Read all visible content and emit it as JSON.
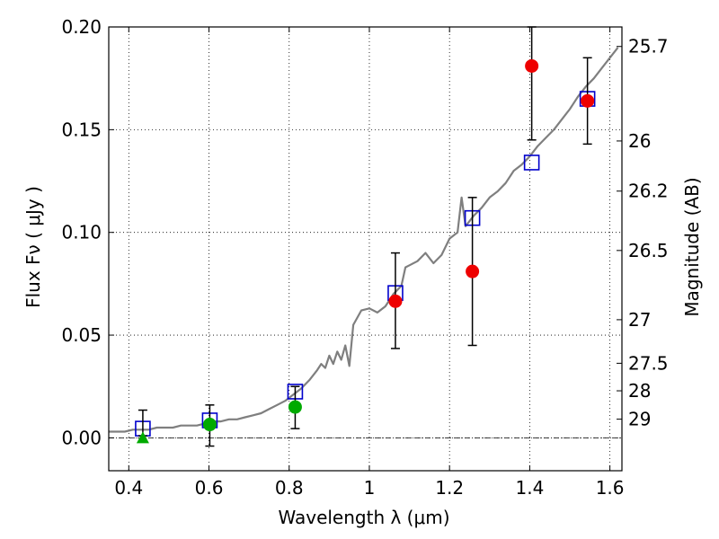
{
  "chart_data": {
    "type": "scatter",
    "xlabel": "Wavelength  λ (μm)",
    "ylabel": "Flux  Fν  ( μJy )",
    "ylabel_right": "Magnitude (AB)",
    "xlim": [
      0.35,
      1.63
    ],
    "ylim": [
      -0.016,
      0.2
    ],
    "x_ticks": [
      0.4,
      0.6,
      0.8,
      1.0,
      1.2,
      1.4,
      1.6
    ],
    "x_tick_labels": [
      "0.4",
      "0.6",
      "0.8",
      "1",
      "1.2",
      "1.4",
      "1.6"
    ],
    "y_ticks": [
      0.0,
      0.05,
      0.1,
      0.15,
      0.2
    ],
    "y_tick_labels": [
      "0.00",
      "0.05",
      "0.10",
      "0.15",
      "0.20"
    ],
    "right_ticks": [
      {
        "flux": 0.1905,
        "label": "25.7"
      },
      {
        "flux": 0.1445,
        "label": "26"
      },
      {
        "flux": 0.1201,
        "label": "26.2"
      },
      {
        "flux": 0.0912,
        "label": "26.5"
      },
      {
        "flux": 0.0575,
        "label": "27"
      },
      {
        "flux": 0.0363,
        "label": "27.5"
      },
      {
        "flux": 0.0229,
        "label": "28"
      },
      {
        "flux": 0.0091,
        "label": "29"
      }
    ],
    "grid": true,
    "colors": {
      "model": "#7f7f7f",
      "model_points": "#0000cc",
      "red_points": "#ee0000",
      "green_points": "#00aa00",
      "errorbars": "#000000"
    },
    "series": [
      {
        "marker": "line",
        "x": [
          0.35,
          0.37,
          0.39,
          0.41,
          0.43,
          0.45,
          0.47,
          0.49,
          0.51,
          0.53,
          0.55,
          0.57,
          0.59,
          0.61,
          0.63,
          0.65,
          0.67,
          0.69,
          0.71,
          0.73,
          0.75,
          0.77,
          0.79,
          0.81,
          0.83,
          0.85,
          0.87,
          0.88,
          0.89,
          0.9,
          0.91,
          0.92,
          0.93,
          0.94,
          0.95,
          0.96,
          0.98,
          1.0,
          1.02,
          1.04,
          1.06,
          1.08,
          1.09,
          1.1,
          1.12,
          1.14,
          1.16,
          1.18,
          1.2,
          1.22,
          1.23,
          1.24,
          1.26,
          1.28,
          1.3,
          1.32,
          1.34,
          1.36,
          1.38,
          1.4,
          1.42,
          1.44,
          1.46,
          1.48,
          1.5,
          1.52,
          1.54,
          1.56,
          1.58,
          1.6,
          1.62
        ],
        "y": [
          0.003,
          0.003,
          0.003,
          0.004,
          0.004,
          0.004,
          0.005,
          0.005,
          0.005,
          0.006,
          0.006,
          0.006,
          0.007,
          0.008,
          0.008,
          0.009,
          0.009,
          0.01,
          0.011,
          0.012,
          0.014,
          0.016,
          0.018,
          0.021,
          0.024,
          0.028,
          0.033,
          0.036,
          0.034,
          0.04,
          0.036,
          0.042,
          0.038,
          0.045,
          0.035,
          0.055,
          0.062,
          0.063,
          0.061,
          0.064,
          0.07,
          0.074,
          0.083,
          0.084,
          0.086,
          0.09,
          0.085,
          0.089,
          0.097,
          0.1,
          0.117,
          0.103,
          0.108,
          0.112,
          0.117,
          0.12,
          0.124,
          0.13,
          0.133,
          0.137,
          0.142,
          0.146,
          0.15,
          0.155,
          0.16,
          0.166,
          0.171,
          0.175,
          0.18,
          0.185,
          0.19
        ]
      },
      {
        "marker": "square",
        "x": [
          0.435,
          0.602,
          0.815,
          1.065,
          1.257,
          1.405,
          1.544
        ],
        "y": [
          0.0045,
          0.0085,
          0.0225,
          0.0705,
          0.107,
          0.134,
          0.165
        ]
      },
      {
        "marker": "circle-red",
        "x": [
          1.065,
          1.257,
          1.405,
          1.544
        ],
        "y": [
          0.0665,
          0.081,
          0.181,
          0.164
        ],
        "err_low": [
          0.0435,
          0.045,
          0.145,
          0.143
        ],
        "err_high": [
          0.09,
          0.117,
          0.2,
          0.185
        ]
      },
      {
        "marker": "circle-green",
        "x": [
          0.602,
          0.815
        ],
        "y": [
          0.0065,
          0.015
        ],
        "err_low": [
          -0.004,
          0.0045
        ],
        "err_high": [
          0.016,
          0.025
        ]
      },
      {
        "marker": "triangle-green",
        "x": [
          0.435
        ],
        "y": [
          0.0
        ],
        "err_low": [
          0.001
        ],
        "err_high": [
          0.0135
        ]
      }
    ]
  }
}
